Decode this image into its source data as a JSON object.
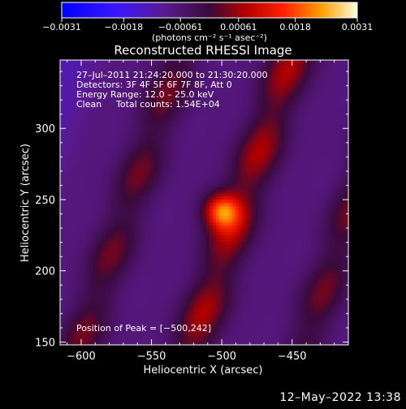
{
  "chart_data": {
    "type": "heatmap",
    "title": "Reconstructed RHESSI Image",
    "xlabel": "Heliocentric X (arcsec)",
    "ylabel": "Heliocentric Y (arcsec)",
    "xlim": [
      -615,
      -410
    ],
    "ylim": [
      148,
      348
    ],
    "x_ticks": [
      -600,
      -550,
      -500,
      -450
    ],
    "x_tick_labels": [
      "−600",
      "−550",
      "−500",
      "−450"
    ],
    "y_ticks": [
      150,
      200,
      250,
      300
    ],
    "y_tick_labels": [
      "150",
      "200",
      "250",
      "300"
    ],
    "colorbar": {
      "ticks": [
        -0.0031,
        -0.0018,
        -0.00061,
        0.00061,
        0.0018,
        0.0031
      ],
      "tick_labels": [
        "−0.0031",
        "−0.0018",
        "−0.00061",
        "0.00061",
        "0.0018",
        "0.0031"
      ],
      "unit_label": "(photons cm⁻² s⁻¹ asec⁻²)",
      "range": [
        -0.0031,
        0.0031
      ]
    },
    "annotations": {
      "time_range": "27–Jul–2011 21:24:20.000 to 21:30:20.000",
      "detectors": "Detectors: 3F 4F 5F 6F 7F 8F, Att 0",
      "energy": "Energy Range: 12.0 – 25.0 keV",
      "method": "Clean",
      "total_counts": "Total counts: 1.54E+04",
      "peak": "Position of Peak = [−500,242]"
    },
    "peak_position": [
      -500,
      242
    ],
    "stripes": [
      {
        "x_at_y150": -600,
        "amplitude": 0.0016
      },
      {
        "x_at_y150": -520,
        "amplitude": 0.002
      },
      {
        "x_at_y150": -440,
        "amplitude": 0.0016
      }
    ]
  },
  "timestamp": "12–May–2022 13:38"
}
